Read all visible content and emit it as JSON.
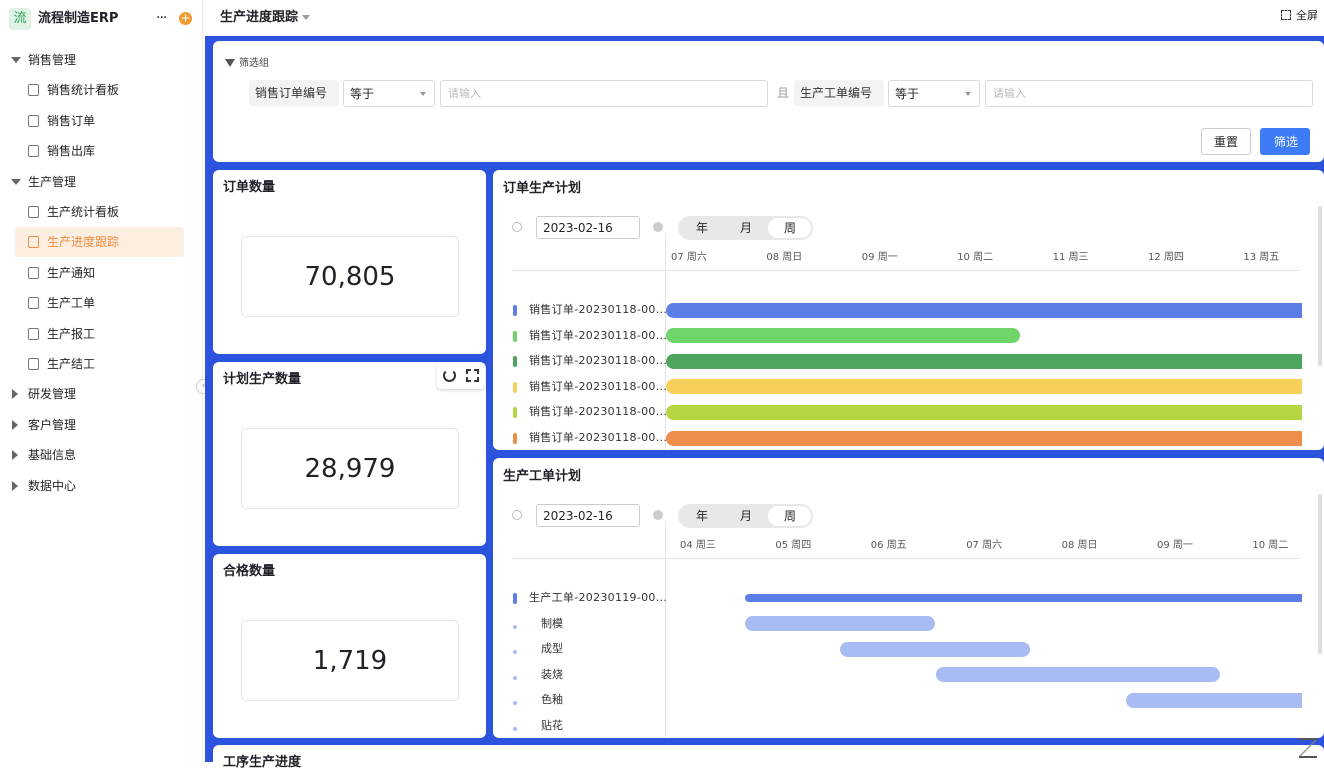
{
  "sidebar": {
    "app_icon": "流",
    "app_name": "流程制造ERP",
    "menu": [
      {
        "label": "销售管理",
        "children": [
          "销售统计看板",
          "销售订单",
          "销售出库"
        ]
      },
      {
        "label": "生产管理",
        "children": [
          "生产统计看板",
          "生产进度跟踪",
          "生产通知",
          "生产工单",
          "生产报工",
          "生产结工"
        ]
      },
      {
        "label": "研发管理"
      },
      {
        "label": "客户管理"
      },
      {
        "label": "基础信息"
      },
      {
        "label": "数据中心"
      }
    ]
  },
  "topbar": {
    "title": "生产进度跟踪",
    "fullscreen": "全屏"
  },
  "filter": {
    "title": "筛选组",
    "conjunction": "且",
    "fields": [
      {
        "label": "销售订单编号",
        "operator": "等于",
        "placeholder": "请输入"
      },
      {
        "label": "生产工单编号",
        "operator": "等于",
        "placeholder": "请输入"
      }
    ],
    "buttons": [
      "重置",
      "筛选"
    ]
  },
  "stats": [
    {
      "title": "订单数量",
      "value": "70,805"
    },
    {
      "title": "计划生产数量",
      "value": "28,979"
    },
    {
      "title": "合格数量",
      "value": "1,719"
    }
  ],
  "gantt": [
    {
      "title": "订单生产计划",
      "date": "2023-02-16",
      "views": [
        "年",
        "月",
        "周"
      ],
      "columns": [
        "07 周六",
        "08 周日",
        "09 周一",
        "10 周二",
        "11 周三",
        "12 周四",
        "13 周五"
      ],
      "rows": [
        "销售订单-20230118-00...",
        "销售订单-20230118-00...",
        "销售订单-20230118-00...",
        "销售订单-20230118-00...",
        "销售订单-20230118-00...",
        "销售订单-20230118-00..."
      ]
    },
    {
      "title": "生产工单计划",
      "date": "2023-02-16",
      "views": [
        "年",
        "月",
        "周"
      ],
      "columns": [
        "04 周三",
        "05 周四",
        "06 周五",
        "07 周六",
        "08 周日",
        "09 周一",
        "10 周二"
      ],
      "rows": [
        "生产工单-20230119-00...",
        "制模",
        "成型",
        "装烧",
        "色釉",
        "贴花"
      ]
    }
  ],
  "bottom_title": "工序生产进度"
}
